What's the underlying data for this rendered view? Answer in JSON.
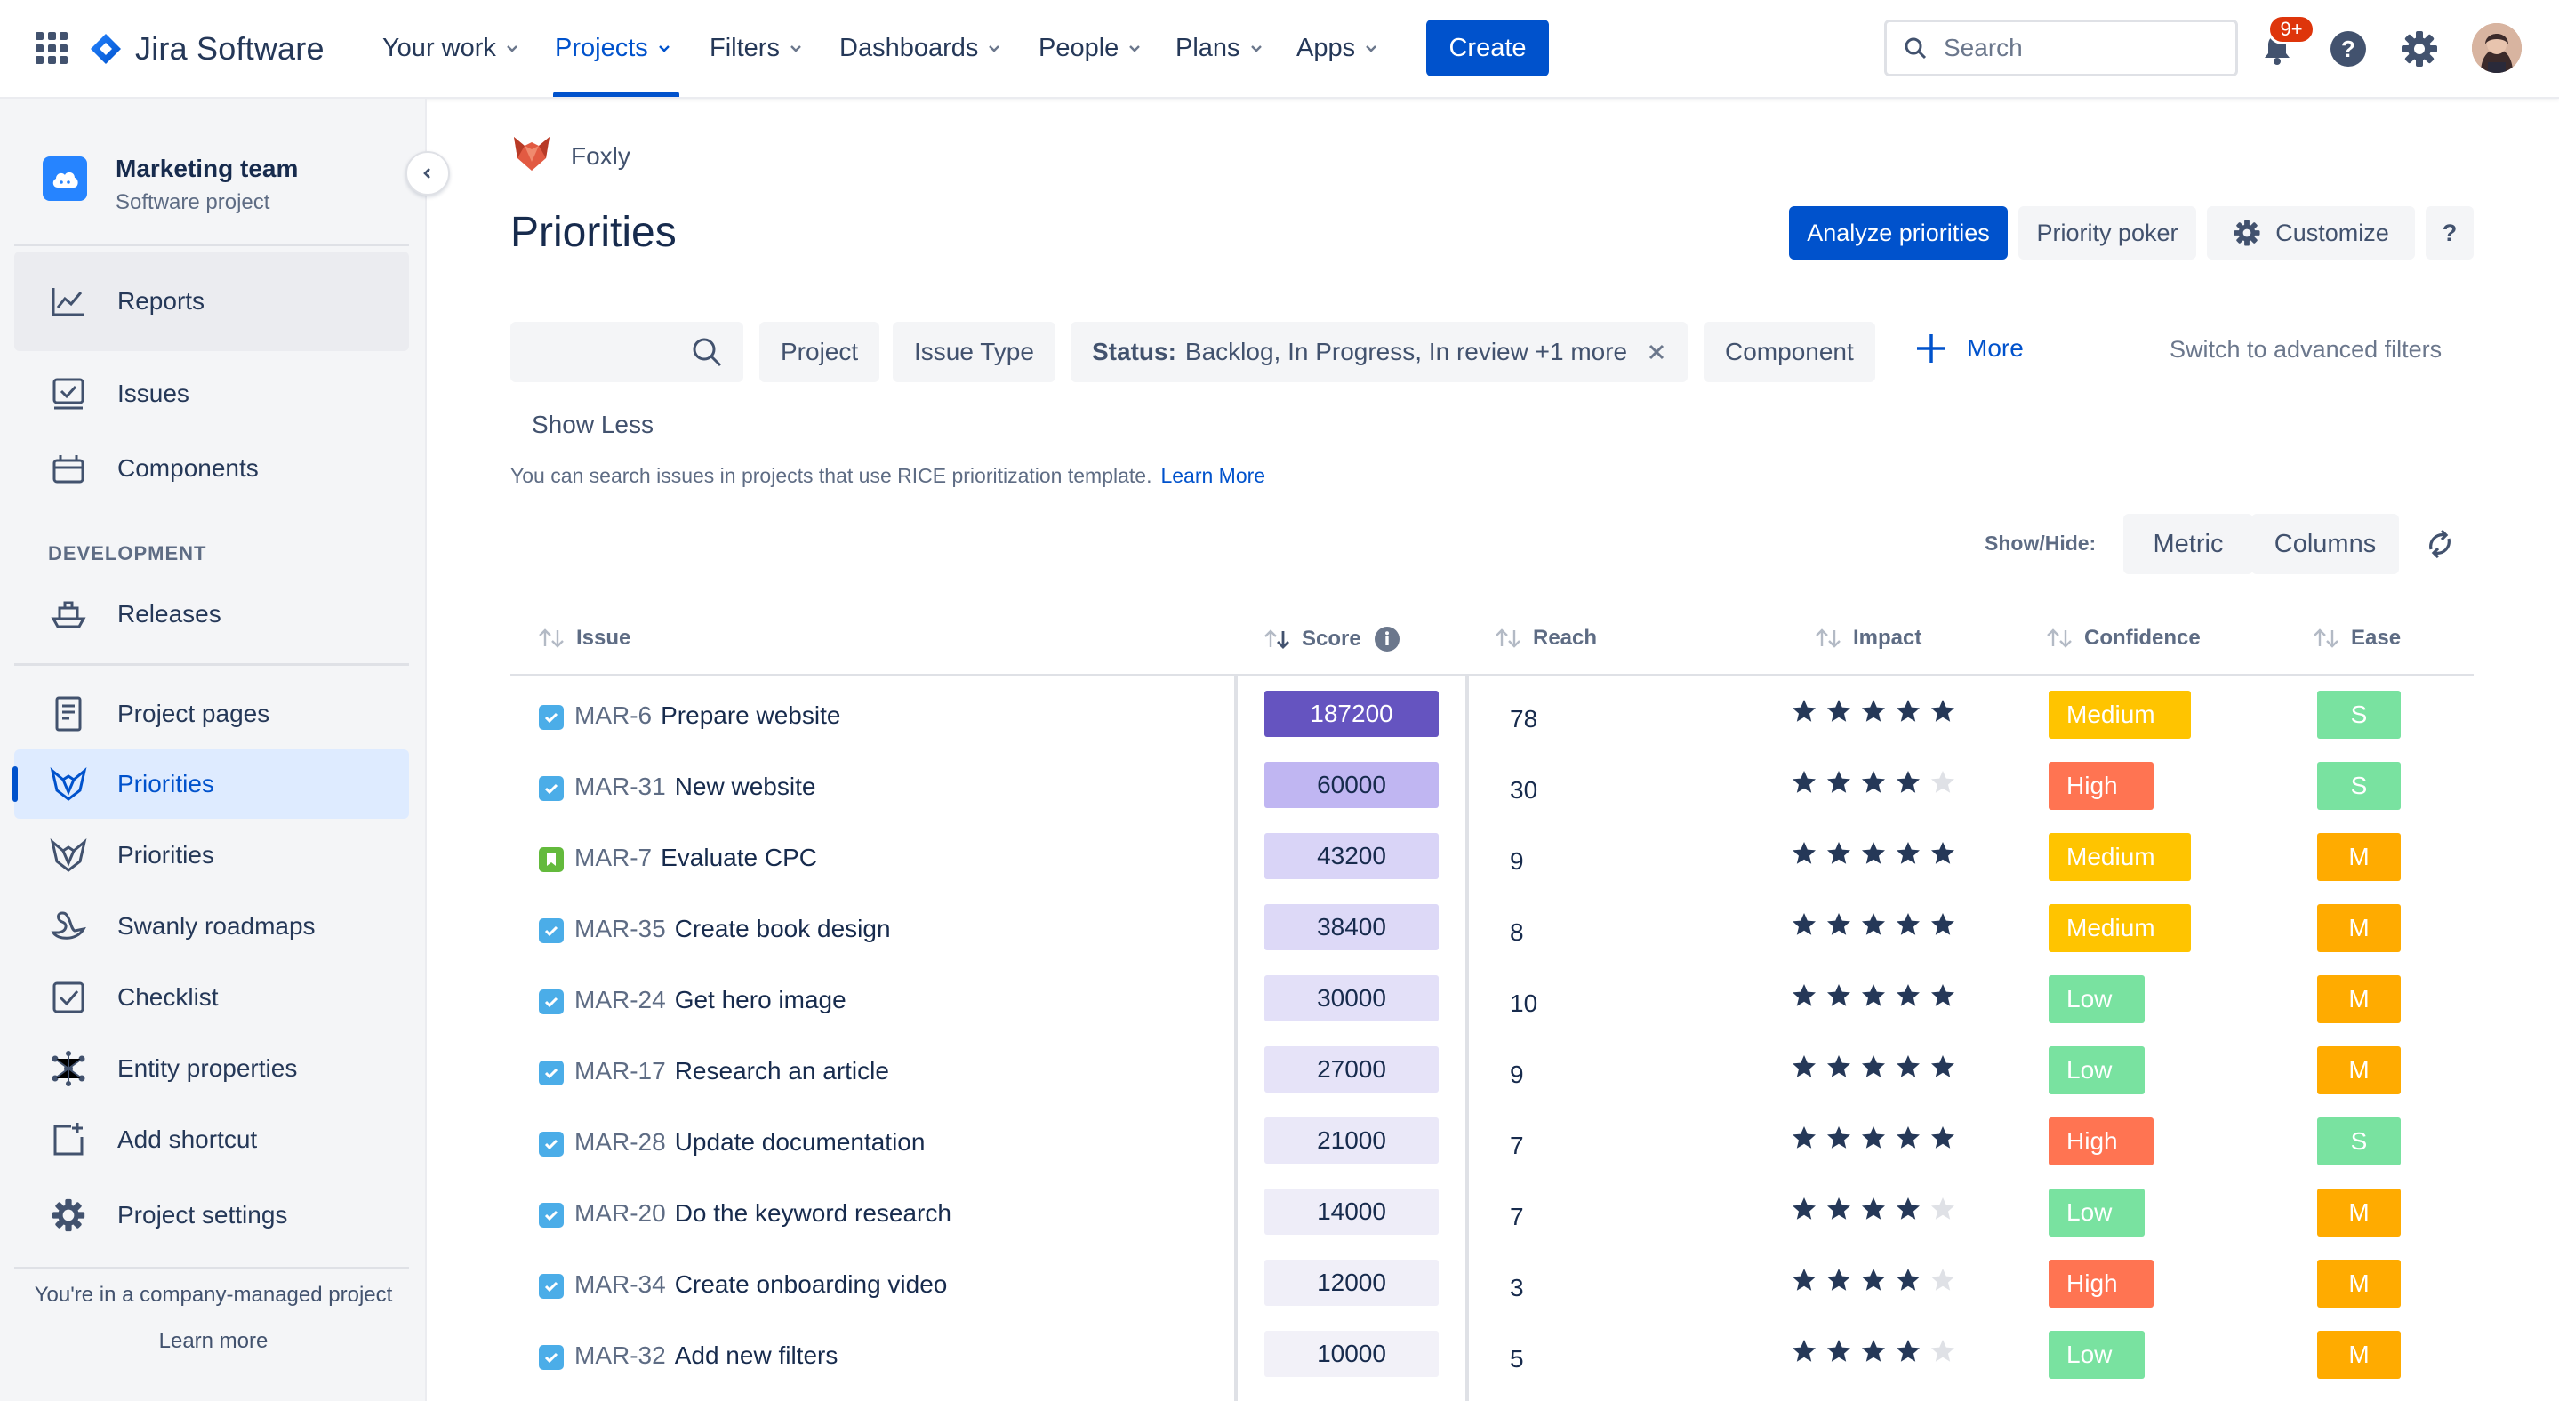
{
  "topnav": {
    "logo_text": "Jira Software",
    "items": [
      "Your work",
      "Projects",
      "Filters",
      "Dashboards",
      "People",
      "Plans",
      "Apps"
    ],
    "create_label": "Create",
    "search_placeholder": "Search",
    "notification_badge": "9+"
  },
  "sidebar": {
    "project_name": "Marketing team",
    "project_type": "Software project",
    "reports": "Reports",
    "issues": "Issues",
    "components": "Components",
    "dev_heading": "DEVELOPMENT",
    "releases": "Releases",
    "project_pages": "Project pages",
    "priorities_active": "Priorities",
    "priorities": "Priorities",
    "swanly": "Swanly roadmaps",
    "checklist": "Checklist",
    "entity": "Entity properties",
    "add_shortcut": "Add shortcut",
    "settings": "Project settings",
    "footer": "You're in a company-managed project",
    "learn_more": "Learn more"
  },
  "main": {
    "breadcrumb": "Foxly",
    "title": "Priorities",
    "analyze": "Analyze priorities",
    "poker": "Priority poker",
    "customize": "Customize",
    "help": "?",
    "filters": {
      "project": "Project",
      "issue_type": "Issue Type",
      "status_label": "Status:",
      "status_value": "Backlog, In Progress, In review +1 more",
      "component": "Component",
      "more": "More",
      "advanced": "Switch to advanced filters",
      "show_less": "Show Less"
    },
    "info": "You can search issues in projects that use RICE prioritization template.",
    "info_link": "Learn More",
    "showhide_label": "Show/Hide:",
    "metric": "Metric",
    "columns": "Columns"
  },
  "table": {
    "headers": {
      "issue": "Issue",
      "score": "Score",
      "reach": "Reach",
      "impact": "Impact",
      "confidence": "Confidence",
      "ease": "Ease"
    },
    "rows": [
      {
        "key": "MAR-6",
        "title": "Prepare website",
        "type": "task",
        "score": "187200",
        "score_bg": "#6554C0",
        "score_fg": "#FFFFFF",
        "reach": "78",
        "impact": 5,
        "confidence": "Medium",
        "conf_color": "#FFC400",
        "ease": "S",
        "ease_color": "#79E2A0"
      },
      {
        "key": "MAR-31",
        "title": "New website",
        "type": "task",
        "score": "60000",
        "score_bg": "#C0B6F2",
        "score_fg": "#172B4D",
        "reach": "30",
        "impact": 4,
        "confidence": "High",
        "conf_color": "#FF7452",
        "ease": "S",
        "ease_color": "#79E2A0"
      },
      {
        "key": "MAR-7",
        "title": "Evaluate CPC",
        "type": "story",
        "score": "43200",
        "score_bg": "#D9D4F7",
        "score_fg": "#172B4D",
        "reach": "9",
        "impact": 5,
        "confidence": "Medium",
        "conf_color": "#FFC400",
        "ease": "M",
        "ease_color": "#FFAB00"
      },
      {
        "key": "MAR-35",
        "title": "Create book design",
        "type": "task",
        "score": "38400",
        "score_bg": "#DDD9F7",
        "score_fg": "#172B4D",
        "reach": "8",
        "impact": 5,
        "confidence": "Medium",
        "conf_color": "#FFC400",
        "ease": "M",
        "ease_color": "#FFAB00"
      },
      {
        "key": "MAR-24",
        "title": "Get hero image",
        "type": "task",
        "score": "30000",
        "score_bg": "#E3E0F8",
        "score_fg": "#172B4D",
        "reach": "10",
        "impact": 5,
        "confidence": "Low",
        "conf_color": "#79E2A0",
        "ease": "M",
        "ease_color": "#FFAB00"
      },
      {
        "key": "MAR-17",
        "title": "Research an article",
        "type": "task",
        "score": "27000",
        "score_bg": "#E6E3F8",
        "score_fg": "#172B4D",
        "reach": "9",
        "impact": 5,
        "confidence": "Low",
        "conf_color": "#79E2A0",
        "ease": "M",
        "ease_color": "#FFAB00"
      },
      {
        "key": "MAR-28",
        "title": "Update documentation",
        "type": "task",
        "score": "21000",
        "score_bg": "#EAE8F8",
        "score_fg": "#172B4D",
        "reach": "7",
        "impact": 5,
        "confidence": "High",
        "conf_color": "#FF7452",
        "ease": "S",
        "ease_color": "#79E2A0"
      },
      {
        "key": "MAR-20",
        "title": "Do the keyword research",
        "type": "task",
        "score": "14000",
        "score_bg": "#EEEDF8",
        "score_fg": "#172B4D",
        "reach": "7",
        "impact": 4,
        "confidence": "Low",
        "conf_color": "#79E2A0",
        "ease": "M",
        "ease_color": "#FFAB00"
      },
      {
        "key": "MAR-34",
        "title": "Create onboarding video",
        "type": "task",
        "score": "12000",
        "score_bg": "#F0EFF8",
        "score_fg": "#172B4D",
        "reach": "3",
        "impact": 4,
        "confidence": "High",
        "conf_color": "#FF7452",
        "ease": "M",
        "ease_color": "#FFAB00"
      },
      {
        "key": "MAR-32",
        "title": "Add new filters",
        "type": "task",
        "score": "10000",
        "score_bg": "#F2F1F8",
        "score_fg": "#172B4D",
        "reach": "5",
        "impact": 4,
        "confidence": "Low",
        "conf_color": "#79E2A0",
        "ease": "M",
        "ease_color": "#FFAB00"
      }
    ]
  },
  "colors": {
    "accent": "#0052CC",
    "text": "#172B4D",
    "muted": "#5E6C84"
  }
}
